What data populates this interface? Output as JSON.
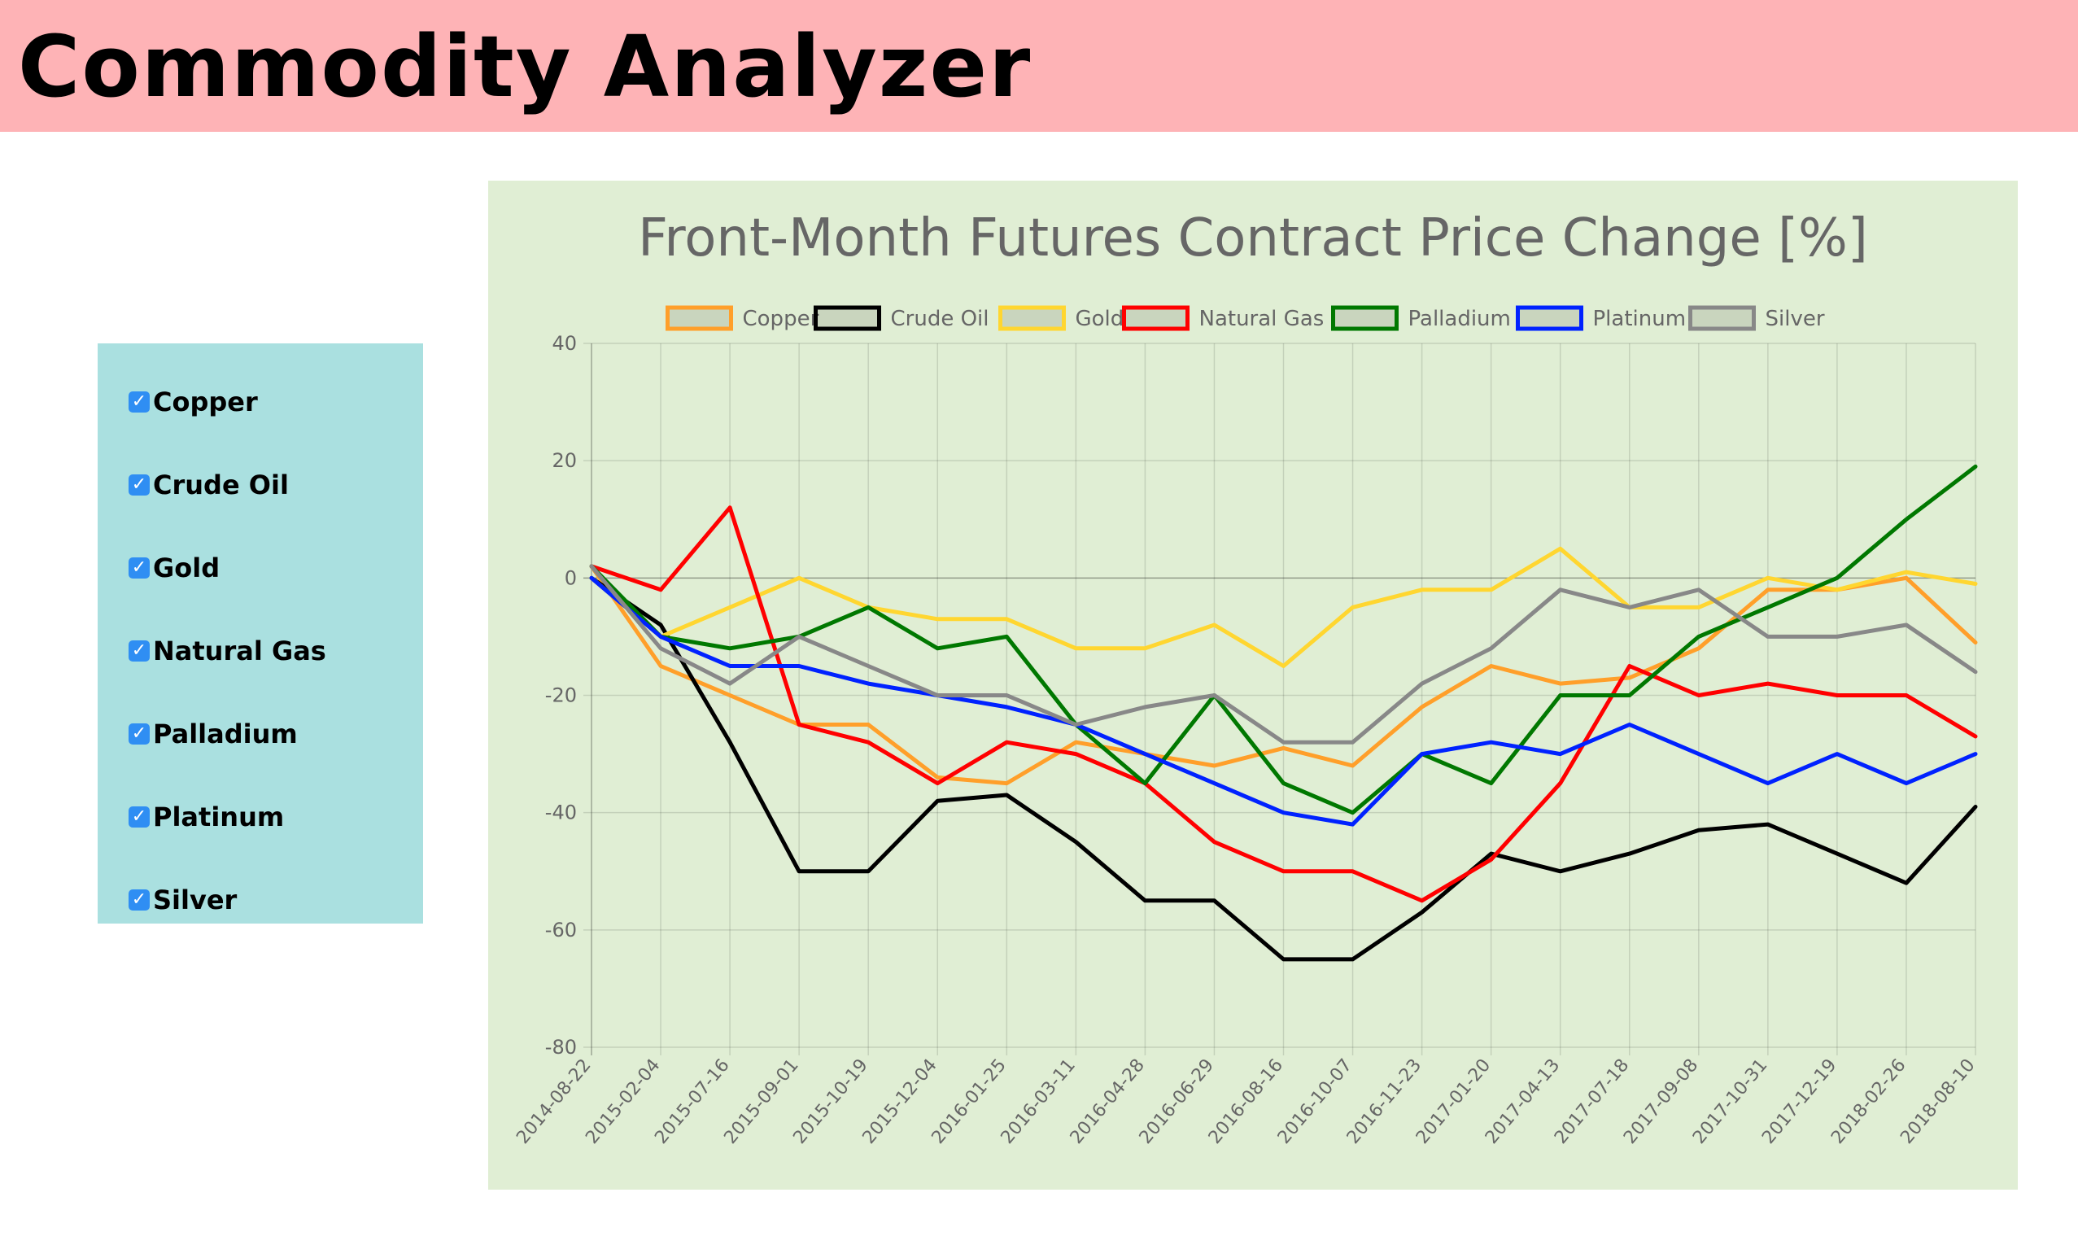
{
  "app": {
    "title": "Commodity Analyzer"
  },
  "sidebar": {
    "items": [
      {
        "label": "Copper",
        "checked": true
      },
      {
        "label": "Crude Oil",
        "checked": true
      },
      {
        "label": "Gold",
        "checked": true
      },
      {
        "label": "Natural Gas",
        "checked": true
      },
      {
        "label": "Palladium",
        "checked": true
      },
      {
        "label": "Platinum",
        "checked": true
      },
      {
        "label": "Silver",
        "checked": true
      }
    ],
    "checkbox_glyph": "✓",
    "checkbox_color": "#2f8ef3",
    "background": "#aae0e0"
  },
  "colors": {
    "header": "#feb3b6",
    "chart_background": "#e0eed4"
  },
  "chart_data": {
    "type": "line",
    "title": "Front-Month Futures Contract Price Change [%]",
    "xlabel": "",
    "ylabel": "",
    "ylim": [
      -80,
      40
    ],
    "yticks": [
      40,
      20,
      0,
      -20,
      -40,
      -60,
      -80
    ],
    "x": [
      "2014-08-22",
      "2015-02-04",
      "2015-07-16",
      "2015-09-01",
      "2015-10-19",
      "2015-12-04",
      "2016-01-25",
      "2016-03-11",
      "2016-04-28",
      "2016-06-29",
      "2016-08-16",
      "2016-10-07",
      "2016-11-23",
      "2017-01-20",
      "2017-04-13",
      "2017-07-18",
      "2017-09-08",
      "2017-10-31",
      "2017-12-19",
      "2018-02-26",
      "2018-08-10"
    ],
    "grid": true,
    "legend_position": "top",
    "series": [
      {
        "name": "Copper",
        "color": "#ff9f2a",
        "values": [
          2,
          -15,
          -20,
          -25,
          -25,
          -34,
          -35,
          -28,
          -30,
          -32,
          -29,
          -32,
          -22,
          -15,
          -18,
          -17,
          -12,
          -2,
          -2,
          0,
          -11
        ]
      },
      {
        "name": "Crude Oil",
        "color": "#000000",
        "values": [
          0,
          -8,
          -28,
          -50,
          -50,
          -38,
          -37,
          -45,
          -55,
          -55,
          -65,
          -65,
          -57,
          -47,
          -50,
          -47,
          -43,
          -42,
          -47,
          -52,
          -39
        ]
      },
      {
        "name": "Gold",
        "color": "#ffd630",
        "values": [
          0,
          -10,
          -5,
          0,
          -5,
          -7,
          -7,
          -12,
          -12,
          -8,
          -15,
          -5,
          -2,
          -2,
          5,
          -5,
          -5,
          0,
          -2,
          1,
          -1
        ]
      },
      {
        "name": "Natural Gas",
        "color": "#ff0000",
        "values": [
          2,
          -2,
          12,
          -25,
          -28,
          -35,
          -28,
          -30,
          -35,
          -45,
          -50,
          -50,
          -55,
          -48,
          -35,
          -15,
          -20,
          -18,
          -20,
          -20,
          -27
        ]
      },
      {
        "name": "Palladium",
        "color": "#007800",
        "values": [
          2,
          -10,
          -12,
          -10,
          -5,
          -12,
          -10,
          -25,
          -35,
          -20,
          -35,
          -40,
          -30,
          -35,
          -20,
          -20,
          -10,
          -5,
          0,
          10,
          19
        ]
      },
      {
        "name": "Platinum",
        "color": "#0022ff",
        "values": [
          0,
          -10,
          -15,
          -15,
          -18,
          -20,
          -22,
          -25,
          -30,
          -35,
          -40,
          -42,
          -30,
          -28,
          -30,
          -25,
          -30,
          -35,
          -30,
          -35,
          -30
        ]
      },
      {
        "name": "Silver",
        "color": "#888888",
        "values": [
          2,
          -12,
          -18,
          -10,
          -15,
          -20,
          -20,
          -25,
          -22,
          -20,
          -28,
          -28,
          -18,
          -12,
          -2,
          -5,
          -2,
          -10,
          -10,
          -8,
          -16
        ]
      }
    ]
  }
}
